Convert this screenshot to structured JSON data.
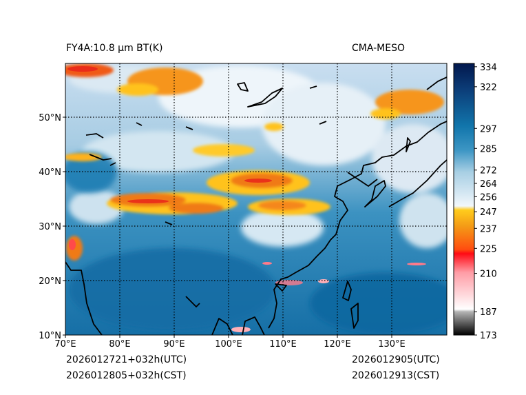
{
  "header": {
    "left_title": "FY4A:10.8 µm BT(K)",
    "right_title": "CMA-MESO"
  },
  "footer": {
    "init_utc": "2026012721+032h(UTC)",
    "init_cst": "2026012805+032h(CST)",
    "valid_utc": "2026012905(UTC)",
    "valid_cst": "2026012913(CST)"
  },
  "map": {
    "lon_ticks": [
      "70°E",
      "80°E",
      "90°E",
      "100°E",
      "110°E",
      "120°E",
      "130°E"
    ],
    "lat_ticks": [
      "10°N",
      "20°N",
      "30°N",
      "40°N",
      "50°N"
    ],
    "lon_range": [
      70,
      140
    ],
    "lat_range": [
      10,
      60
    ]
  },
  "colorbar": {
    "ticks": [
      "173",
      "187",
      "210",
      "225",
      "237",
      "247",
      "256",
      "264",
      "272",
      "285",
      "297",
      "322",
      "334"
    ],
    "range": [
      173,
      336
    ]
  },
  "colors": {
    "cold_cloud": "#f07c10",
    "very_cold": "#e8201a",
    "mid_cloud": "#ffd21e",
    "clear_warm": "#1070a8",
    "high_thin": "#d9e9f3"
  }
}
